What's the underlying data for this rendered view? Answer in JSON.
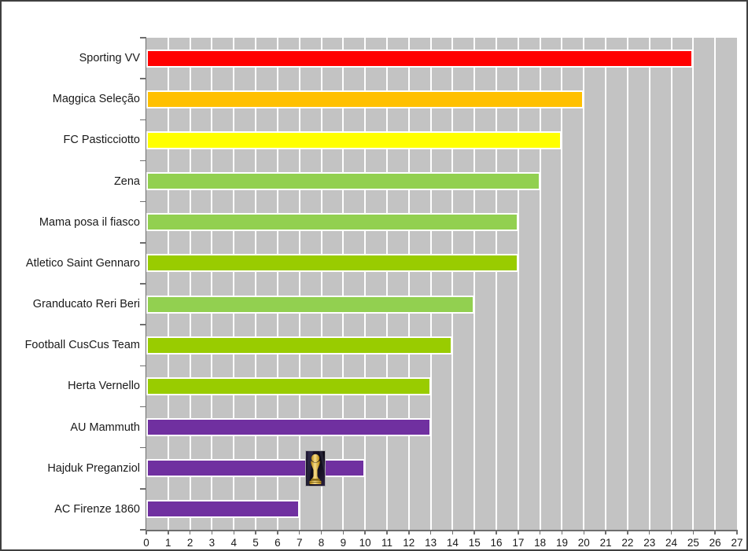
{
  "chart_data": {
    "type": "bar",
    "orientation": "horizontal",
    "title": "",
    "xlabel": "",
    "ylabel": "",
    "xlim": [
      0,
      27
    ],
    "x_ticks": [
      0,
      1,
      2,
      3,
      4,
      5,
      6,
      7,
      8,
      9,
      10,
      11,
      12,
      13,
      14,
      15,
      16,
      17,
      18,
      19,
      20,
      21,
      22,
      23,
      24,
      25,
      26,
      27
    ],
    "categories": [
      "Sporting VV",
      "Maggica Seleção",
      "FC Pasticciotto",
      "Zena",
      "Mama posa il fiasco",
      "Atletico Saint Gennaro",
      "Granducato Reri Beri",
      "Football CusCus Team",
      "Herta Vernello",
      "AU Mammuth",
      "Hajduk Preganziol",
      "AC Firenze 1860"
    ],
    "values": [
      25,
      20,
      19,
      18,
      17,
      17,
      15,
      14,
      13,
      13,
      10,
      7
    ],
    "bar_colors": [
      "#FF0000",
      "#FFC000",
      "#FFFF00",
      "#92D050",
      "#92D050",
      "#99CC00",
      "#92D050",
      "#99CC00",
      "#99CC00",
      "#7030A0",
      "#7030A0",
      "#7030A0"
    ],
    "legend": null,
    "grid": {
      "vertical": true,
      "horizontal": false
    },
    "annotations": [
      {
        "name": "world-cup-trophy-image",
        "row": "Hajduk Preganziol",
        "row_index": 10,
        "x_value": 7.73
      }
    ]
  },
  "colors": {
    "plot_background": "#C3C3C3",
    "gridline": "#FFFFFF",
    "bar_border": "#FFFFFF",
    "axis": "#6E6E6E",
    "text": "#1A1A1A",
    "frame_border": "#3F3F3F",
    "page_background": "#FFFFFF",
    "trophy_gold_light": "#F7DC8A",
    "trophy_gold_dark": "#B8860B",
    "trophy_background": "#110D1A"
  }
}
